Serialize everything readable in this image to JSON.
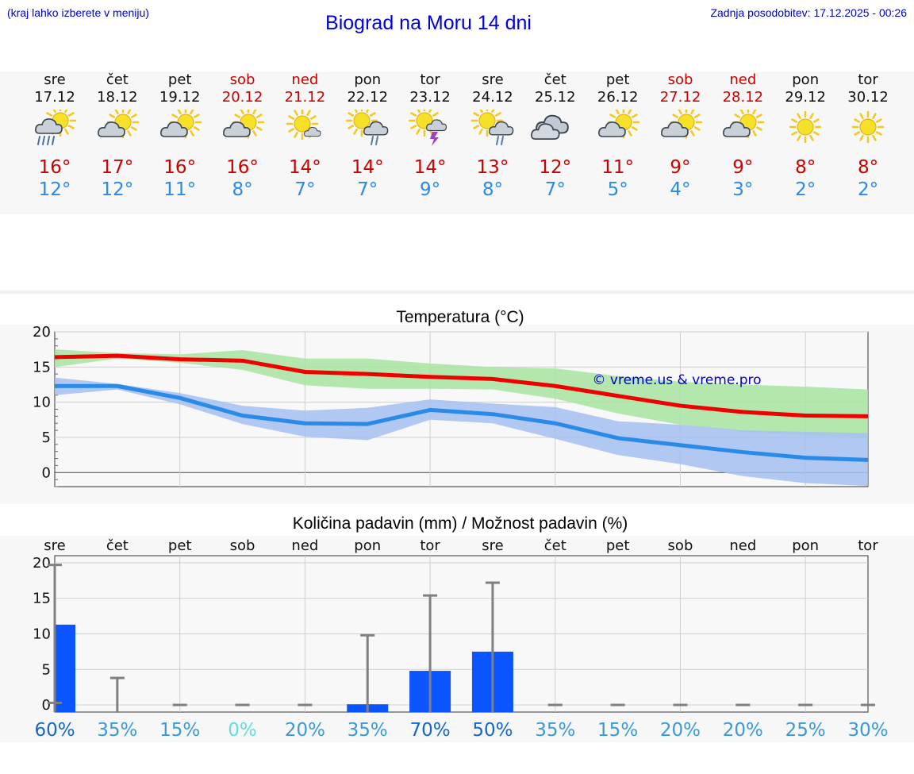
{
  "header": {
    "left_note": "(kraj lahko izberete v meniju)",
    "title": "Biograd na Moru 14 dni",
    "updated": "Zadnja posodobitev: 17.12.2025 - 00:26"
  },
  "days": [
    {
      "name": "sre",
      "date": "17.12",
      "weekend": false,
      "icon": "sun-cloud-heavy-rain-icon",
      "tmax": "16°",
      "tmin": "12°"
    },
    {
      "name": "čet",
      "date": "18.12",
      "weekend": false,
      "icon": "sun-cloud-icon",
      "tmax": "17°",
      "tmin": "12°"
    },
    {
      "name": "pet",
      "date": "19.12",
      "weekend": false,
      "icon": "sun-cloud-icon",
      "tmax": "16°",
      "tmin": "11°"
    },
    {
      "name": "sob",
      "date": "20.12",
      "weekend": true,
      "icon": "sun-cloud-icon",
      "tmax": "16°",
      "tmin": "8°"
    },
    {
      "name": "ned",
      "date": "21.12",
      "weekend": true,
      "icon": "sun-small-cloud-icon",
      "tmax": "14°",
      "tmin": "7°"
    },
    {
      "name": "pon",
      "date": "22.12",
      "weekend": false,
      "icon": "sun-cloud-rain-icon",
      "tmax": "14°",
      "tmin": "7°"
    },
    {
      "name": "tor",
      "date": "23.12",
      "weekend": false,
      "icon": "sun-thunderstorm-icon",
      "tmax": "14°",
      "tmin": "9°"
    },
    {
      "name": "sre",
      "date": "24.12",
      "weekend": false,
      "icon": "sun-cloud-rain-icon",
      "tmax": "13°",
      "tmin": "8°"
    },
    {
      "name": "čet",
      "date": "25.12",
      "weekend": false,
      "icon": "overcast-icon",
      "tmax": "12°",
      "tmin": "7°"
    },
    {
      "name": "pet",
      "date": "26.12",
      "weekend": false,
      "icon": "sun-cloud-icon",
      "tmax": "11°",
      "tmin": "5°"
    },
    {
      "name": "sob",
      "date": "27.12",
      "weekend": true,
      "icon": "sun-cloud-icon",
      "tmax": "9°",
      "tmin": "4°"
    },
    {
      "name": "ned",
      "date": "28.12",
      "weekend": true,
      "icon": "sun-cloud-icon",
      "tmax": "9°",
      "tmin": "3°"
    },
    {
      "name": "pon",
      "date": "29.12",
      "weekend": false,
      "icon": "sun-icon",
      "tmax": "8°",
      "tmin": "2°"
    },
    {
      "name": "tor",
      "date": "30.12",
      "weekend": false,
      "icon": "sun-icon",
      "tmax": "8°",
      "tmin": "2°"
    }
  ],
  "chart_data": [
    {
      "type": "line",
      "title": "Temperatura (°C)",
      "x": [
        0,
        1,
        2,
        3,
        4,
        5,
        6,
        7,
        8,
        9,
        10,
        11,
        12,
        13
      ],
      "ylim": [
        -2,
        20
      ],
      "yticks": [
        0,
        5,
        10,
        15,
        20
      ],
      "watermark": "© vreme.us & vreme.pro",
      "series": [
        {
          "name": "max",
          "color": "#ee0000",
          "values": [
            16.4,
            16.6,
            16.1,
            15.9,
            14.3,
            14.0,
            13.6,
            13.3,
            12.3,
            10.9,
            9.5,
            8.6,
            8.1,
            8.0
          ],
          "band_high": [
            17.5,
            17.0,
            16.8,
            17.4,
            16.2,
            16.2,
            15.5,
            15.0,
            14.8,
            13.7,
            12.9,
            12.5,
            12.2,
            11.8
          ],
          "band_low": [
            15.0,
            16.2,
            15.6,
            14.6,
            12.4,
            11.9,
            11.9,
            11.8,
            10.5,
            8.4,
            6.8,
            5.8,
            5.3,
            5.0
          ],
          "band_color": "#a8e4a0"
        },
        {
          "name": "min",
          "color": "#2a8ae8",
          "values": [
            12.3,
            12.3,
            10.6,
            8.1,
            7.0,
            6.9,
            8.9,
            8.3,
            7.0,
            4.9,
            3.9,
            2.9,
            2.1,
            1.8
          ],
          "band_high": [
            13.5,
            12.6,
            11.3,
            9.5,
            8.8,
            9.2,
            10.4,
            9.8,
            9.3,
            7.3,
            6.8,
            6.0,
            5.8,
            5.6
          ],
          "band_low": [
            11.0,
            11.8,
            9.7,
            6.9,
            5.1,
            4.6,
            7.5,
            7.0,
            4.8,
            2.5,
            1.2,
            -0.5,
            -1.5,
            -1.9
          ],
          "band_color": "#a4c0f2"
        }
      ]
    },
    {
      "type": "bar",
      "title": "Količina padavin (mm) / Možnost padavin (%)",
      "categories": [
        "sre",
        "čet",
        "pet",
        "sob",
        "ned",
        "pon",
        "tor",
        "sre",
        "čet",
        "pet",
        "sob",
        "ned",
        "pon",
        "tor"
      ],
      "ylim": [
        -1,
        21
      ],
      "yticks": [
        0,
        5,
        10,
        15,
        20
      ],
      "values": [
        11.3,
        0.0,
        0.0,
        0.0,
        0.0,
        0.1,
        4.8,
        7.5,
        0.0,
        0.0,
        0.0,
        0.0,
        0.0,
        0.0
      ],
      "range_low": [
        0.3,
        0.0,
        0.0,
        0.0,
        0.0,
        0.0,
        0.0,
        0.0,
        0.0,
        0.0,
        0.0,
        0.0,
        0.0,
        0.0
      ],
      "range_high": [
        19.7,
        3.8,
        0.0,
        0.0,
        0.0,
        9.8,
        15.4,
        17.2,
        0.0,
        0.0,
        0.0,
        0.0,
        0.0,
        0.0
      ],
      "bar_color": "#0a55ff",
      "range_color": "#808080",
      "probability": [
        "60%",
        "35%",
        "15%",
        "0%",
        "20%",
        "35%",
        "70%",
        "50%",
        "35%",
        "15%",
        "20%",
        "20%",
        "25%",
        "30%"
      ],
      "probability_colors": [
        "#1467c8",
        "#3a9ad8",
        "#3a9ad8",
        "#66dcdc",
        "#3a9ad8",
        "#3a9ad8",
        "#1467c8",
        "#1467c8",
        "#3a9ad8",
        "#3a9ad8",
        "#3a9ad8",
        "#3a9ad8",
        "#3a9ad8",
        "#3a9ad8"
      ]
    }
  ]
}
